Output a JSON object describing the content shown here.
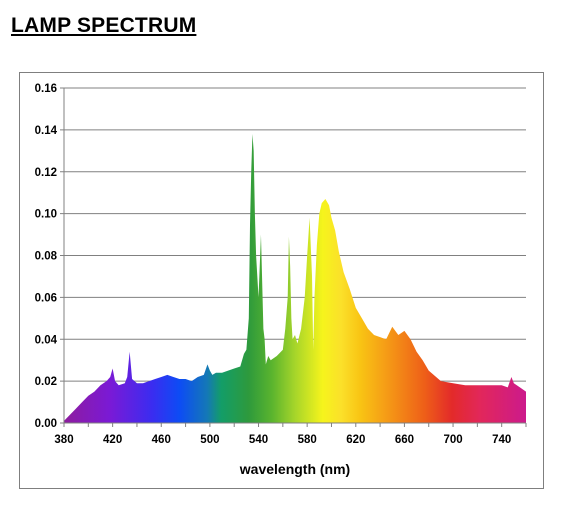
{
  "page": {
    "title": "LAMP SPECTRUM"
  },
  "chart_data": {
    "type": "area",
    "title": "",
    "xlabel": "wavelength (nm)",
    "ylabel": "",
    "xlim": [
      380,
      760
    ],
    "ylim": [
      0,
      0.16
    ],
    "x_ticks": [
      "380",
      "420",
      "460",
      "500",
      "540",
      "580",
      "620",
      "660",
      "700",
      "740"
    ],
    "y_ticks": [
      "0.00",
      "0.02",
      "0.04",
      "0.06",
      "0.08",
      "0.10",
      "0.12",
      "0.14",
      "0.16"
    ],
    "grid": "horizontal",
    "legend": "none",
    "fill": "spectral color gradient (violet to magenta)",
    "series": [
      {
        "x": [
          380,
          385,
          390,
          395,
          400,
          405,
          410,
          415,
          418,
          420,
          422,
          425,
          430,
          432,
          434,
          436,
          440,
          445,
          450,
          455,
          460,
          465,
          470,
          475,
          480,
          485,
          490,
          495,
          498,
          500,
          502,
          505,
          510,
          515,
          520,
          525,
          528,
          530,
          532,
          533,
          534,
          535,
          536,
          537,
          538,
          540,
          542,
          544,
          545,
          546,
          548,
          550,
          555,
          560,
          562,
          564,
          565,
          566,
          567,
          568,
          570,
          572,
          575,
          578,
          580,
          582,
          584,
          585,
          586,
          588,
          590,
          592,
          595,
          598,
          600,
          603,
          606,
          610,
          615,
          620,
          625,
          630,
          635,
          640,
          645,
          650,
          655,
          660,
          665,
          670,
          675,
          680,
          690,
          700,
          710,
          720,
          730,
          740,
          745,
          748,
          750,
          755,
          760
        ],
        "y": [
          0.001,
          0.004,
          0.007,
          0.01,
          0.013,
          0.015,
          0.018,
          0.02,
          0.022,
          0.026,
          0.02,
          0.018,
          0.019,
          0.022,
          0.034,
          0.021,
          0.019,
          0.019,
          0.02,
          0.021,
          0.022,
          0.023,
          0.022,
          0.021,
          0.021,
          0.02,
          0.022,
          0.023,
          0.028,
          0.025,
          0.023,
          0.024,
          0.024,
          0.025,
          0.026,
          0.027,
          0.033,
          0.035,
          0.05,
          0.095,
          0.12,
          0.138,
          0.13,
          0.1,
          0.08,
          0.06,
          0.09,
          0.045,
          0.04,
          0.028,
          0.032,
          0.03,
          0.032,
          0.035,
          0.045,
          0.06,
          0.089,
          0.075,
          0.05,
          0.04,
          0.042,
          0.038,
          0.045,
          0.06,
          0.08,
          0.098,
          0.07,
          0.035,
          0.06,
          0.085,
          0.1,
          0.105,
          0.107,
          0.104,
          0.098,
          0.092,
          0.082,
          0.072,
          0.064,
          0.055,
          0.05,
          0.045,
          0.042,
          0.041,
          0.04,
          0.046,
          0.042,
          0.044,
          0.04,
          0.034,
          0.03,
          0.025,
          0.02,
          0.019,
          0.018,
          0.018,
          0.018,
          0.018,
          0.017,
          0.022,
          0.019,
          0.017,
          0.015
        ]
      }
    ]
  }
}
